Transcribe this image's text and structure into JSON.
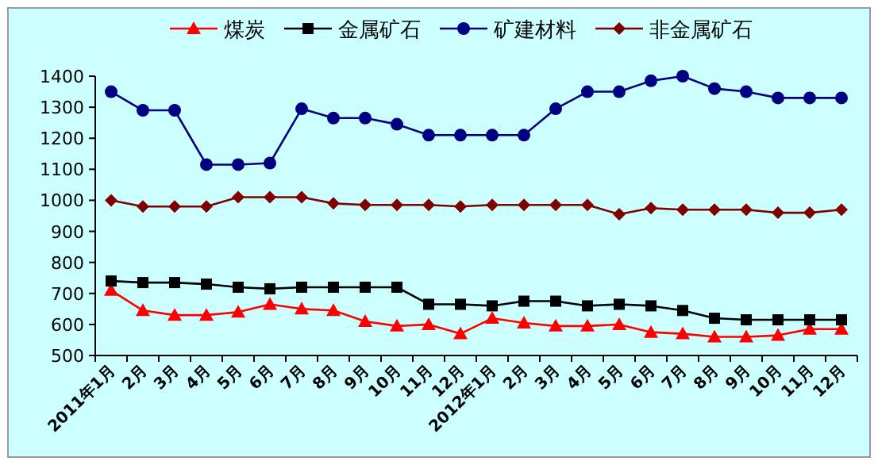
{
  "chart_data": {
    "type": "line",
    "categories": [
      "2011年1月",
      "2月",
      "3月",
      "4月",
      "5月",
      "6月",
      "7月",
      "8月",
      "9月",
      "10月",
      "11月",
      "12月",
      "2012年1月",
      "2月",
      "3月",
      "4月",
      "5月",
      "6月",
      "7月",
      "8月",
      "9月",
      "10月",
      "11月",
      "12月"
    ],
    "series": [
      {
        "name": "煤炭",
        "color": "#ff0000",
        "marker": "triangle",
        "values": [
          710,
          645,
          630,
          630,
          640,
          665,
          650,
          645,
          610,
          595,
          600,
          570,
          620,
          605,
          595,
          595,
          600,
          575,
          570,
          560,
          560,
          565,
          585,
          585
        ]
      },
      {
        "name": "金属矿石",
        "color": "#000000",
        "marker": "square",
        "values": [
          740,
          735,
          735,
          730,
          720,
          715,
          720,
          720,
          720,
          720,
          665,
          665,
          660,
          675,
          675,
          660,
          665,
          660,
          645,
          620,
          615,
          615,
          615,
          615
        ]
      },
      {
        "name": "矿建材料",
        "color": "#000080",
        "marker": "circle",
        "values": [
          1350,
          1290,
          1290,
          1115,
          1115,
          1120,
          1295,
          1265,
          1265,
          1245,
          1210,
          1210,
          1210,
          1210,
          1295,
          1350,
          1350,
          1385,
          1400,
          1360,
          1350,
          1330,
          1330,
          1330
        ]
      },
      {
        "name": "非金属矿石",
        "color": "#800000",
        "marker": "diamond",
        "values": [
          1000,
          980,
          980,
          980,
          1010,
          1010,
          1010,
          990,
          985,
          985,
          985,
          980,
          985,
          985,
          985,
          985,
          955,
          975,
          970,
          970,
          970,
          960,
          960,
          970
        ]
      }
    ],
    "ylim": [
      500,
      1400
    ],
    "yticks": [
      500,
      600,
      700,
      800,
      900,
      1000,
      1100,
      1200,
      1300,
      1400
    ],
    "grid": false,
    "legend": "top"
  }
}
